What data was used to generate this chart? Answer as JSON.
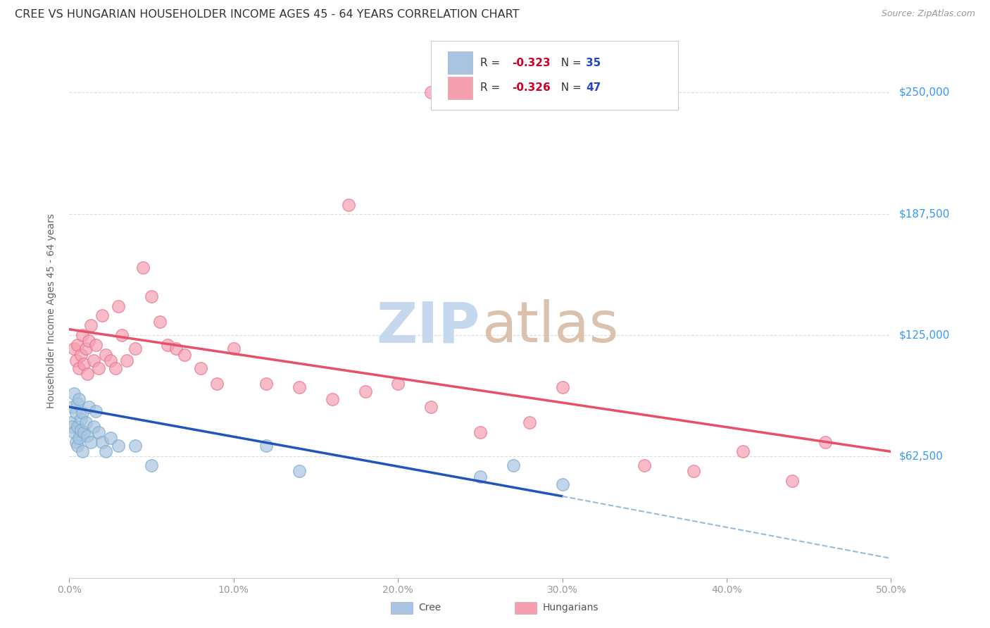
{
  "title": "CREE VS HUNGARIAN HOUSEHOLDER INCOME AGES 45 - 64 YEARS CORRELATION CHART",
  "source": "Source: ZipAtlas.com",
  "ylabel": "Householder Income Ages 45 - 64 years",
  "ytick_labels": [
    "$62,500",
    "$125,000",
    "$187,500",
    "$250,000"
  ],
  "ytick_values": [
    62500,
    125000,
    187500,
    250000
  ],
  "ymin": 0,
  "ymax": 275000,
  "xmin": 0.0,
  "xmax": 0.5,
  "cree_color": "#a8c4e0",
  "cree_edge_color": "#7aaace",
  "hungarian_color": "#f4a0b0",
  "hungarian_edge_color": "#e87090",
  "cree_line_color": "#2255bb",
  "hungarian_line_color": "#e8506a",
  "dashed_line_color": "#99bbdd",
  "watermark_zip_color": "#c5d8ee",
  "watermark_atlas_color": "#d4b8a0",
  "legend_r_color": "#cc0022",
  "legend_n_color": "#2244cc",
  "cree_R": -0.323,
  "cree_N": 35,
  "hungarian_R": -0.326,
  "hungarian_N": 47,
  "cree_scatter_x": [
    0.001,
    0.002,
    0.002,
    0.003,
    0.003,
    0.004,
    0.004,
    0.005,
    0.005,
    0.005,
    0.006,
    0.006,
    0.007,
    0.007,
    0.008,
    0.008,
    0.009,
    0.01,
    0.011,
    0.012,
    0.013,
    0.015,
    0.016,
    0.018,
    0.02,
    0.022,
    0.025,
    0.03,
    0.04,
    0.05,
    0.12,
    0.14,
    0.25,
    0.27,
    0.3
  ],
  "cree_scatter_y": [
    80000,
    88000,
    78000,
    75000,
    95000,
    85000,
    70000,
    90000,
    78000,
    68000,
    92000,
    72000,
    82000,
    76000,
    85000,
    65000,
    75000,
    80000,
    73000,
    88000,
    70000,
    78000,
    86000,
    75000,
    70000,
    65000,
    72000,
    68000,
    68000,
    58000,
    68000,
    55000,
    52000,
    58000,
    48000
  ],
  "hungarian_scatter_x": [
    0.003,
    0.004,
    0.005,
    0.006,
    0.007,
    0.008,
    0.009,
    0.01,
    0.011,
    0.012,
    0.013,
    0.015,
    0.016,
    0.018,
    0.02,
    0.022,
    0.025,
    0.028,
    0.03,
    0.032,
    0.035,
    0.04,
    0.045,
    0.05,
    0.055,
    0.06,
    0.065,
    0.07,
    0.08,
    0.09,
    0.1,
    0.12,
    0.14,
    0.16,
    0.18,
    0.2,
    0.22,
    0.25,
    0.28,
    0.3,
    0.35,
    0.38,
    0.41,
    0.44,
    0.46,
    0.17,
    0.22
  ],
  "hungarian_scatter_y": [
    118000,
    112000,
    120000,
    108000,
    115000,
    125000,
    110000,
    118000,
    105000,
    122000,
    130000,
    112000,
    120000,
    108000,
    135000,
    115000,
    112000,
    108000,
    140000,
    125000,
    112000,
    118000,
    160000,
    145000,
    132000,
    120000,
    118000,
    115000,
    108000,
    100000,
    118000,
    100000,
    98000,
    92000,
    96000,
    100000,
    88000,
    75000,
    80000,
    98000,
    58000,
    55000,
    65000,
    50000,
    70000,
    192000,
    250000
  ],
  "cree_line_x": [
    0.0,
    0.3
  ],
  "cree_line_y": [
    88000,
    42000
  ],
  "hungarian_line_x": [
    0.0,
    0.5
  ],
  "hungarian_line_y": [
    128000,
    65000
  ],
  "dashed_line_x": [
    0.3,
    0.5
  ],
  "dashed_line_y": [
    42000,
    10000
  ],
  "background_color": "#ffffff",
  "grid_color": "#dddddd",
  "xtick_positions": [
    0.0,
    0.1,
    0.2,
    0.3,
    0.4,
    0.5
  ],
  "xtick_labels": [
    "0.0%",
    "10.0%",
    "20.0%",
    "30.0%",
    "40.0%",
    "50.0%"
  ]
}
